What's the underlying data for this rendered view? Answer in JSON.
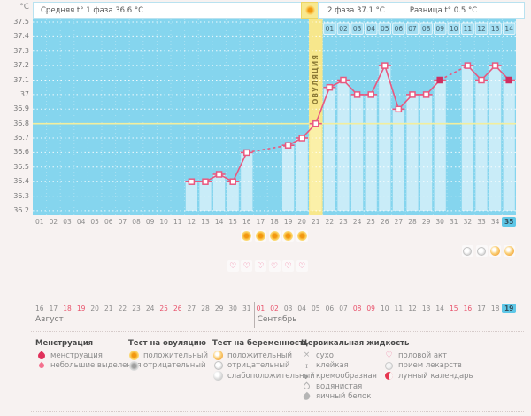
{
  "colors": {
    "chart_bg": "#85d5ee",
    "bar": "#c9ecf8",
    "band": "#f7e78c",
    "band_bar": "#fbf0a8",
    "line": "#e9587f",
    "marker_fill": "#ffffff",
    "marker_filled": "#cf2e61",
    "coverline": "#f3ee9d",
    "highlight_day": "#5ec7e7",
    "weekend_red": "#e8526b"
  },
  "header": {
    "unit_label": "°C",
    "phase1_label": "Средняя t° 1 фаза 36.6 °C",
    "phase2_label": "2 фаза 37.1 °C",
    "diff_label": "Разница t° 0.5 °C",
    "ovulation_label": "ОВУЛЯЦИЯ",
    "sun_icon": "sun-positive-icon"
  },
  "chart_data": {
    "type": "line",
    "title": "Basal body temperature cycle chart",
    "ylabel": "°C",
    "ylim": [
      36.2,
      37.5
    ],
    "ytick_step": 0.1,
    "yticks": [
      "37.5",
      "37.4",
      "37.3",
      "37.2",
      "37.1",
      "37",
      "36.9",
      "36.8",
      "36.7",
      "36.6",
      "36.5",
      "36.4",
      "36.3",
      "36.2"
    ],
    "x_days_total": 35,
    "day_axis_labels": [
      "01",
      "02",
      "03",
      "04",
      "05",
      "06",
      "07",
      "08",
      "09",
      "10",
      "11",
      "12",
      "13",
      "14",
      "15",
      "16",
      "17",
      "18",
      "19",
      "20",
      "21",
      "22",
      "23",
      "24",
      "25",
      "26",
      "27",
      "28",
      "29",
      "30",
      "31",
      "32",
      "33",
      "34",
      "35"
    ],
    "current_cycle_day": 35,
    "coverline_temp": 36.8,
    "ovulation_day": 21,
    "phase2_start_day": 22,
    "phase2_day_labels": [
      "01",
      "02",
      "03",
      "04",
      "05",
      "06",
      "07",
      "08",
      "09",
      "10",
      "11",
      "12",
      "13",
      "14"
    ],
    "points": [
      {
        "day": 12,
        "temp": 36.4
      },
      {
        "day": 13,
        "temp": 36.4
      },
      {
        "day": 14,
        "temp": 36.45
      },
      {
        "day": 15,
        "temp": 36.4
      },
      {
        "day": 16,
        "temp": 36.6
      },
      {
        "day": 19,
        "temp": 36.65
      },
      {
        "day": 20,
        "temp": 36.7
      },
      {
        "day": 21,
        "temp": 36.8
      },
      {
        "day": 22,
        "temp": 37.05
      },
      {
        "day": 23,
        "temp": 37.1
      },
      {
        "day": 24,
        "temp": 37.0
      },
      {
        "day": 25,
        "temp": 37.0
      },
      {
        "day": 26,
        "temp": 37.2
      },
      {
        "day": 27,
        "temp": 36.9
      },
      {
        "day": 28,
        "temp": 37.0
      },
      {
        "day": 29,
        "temp": 37.0
      },
      {
        "day": 30,
        "temp": 37.1
      },
      {
        "day": 32,
        "temp": 37.2
      },
      {
        "day": 33,
        "temp": 37.1
      },
      {
        "day": 34,
        "temp": 37.2
      },
      {
        "day": 35,
        "temp": 37.1
      }
    ],
    "filled_marker_days": [
      30,
      35
    ],
    "missing_days": [
      17,
      18,
      31
    ]
  },
  "marker_rows": {
    "ovulation_tests": [
      {
        "day": 16,
        "type": "positive"
      },
      {
        "day": 17,
        "type": "positive"
      },
      {
        "day": 18,
        "type": "positive"
      },
      {
        "day": 19,
        "type": "positive"
      },
      {
        "day": 20,
        "type": "positive"
      }
    ],
    "pregnancy_tests": [
      {
        "day": 32,
        "type": "negative"
      },
      {
        "day": 33,
        "type": "negative"
      },
      {
        "day": 34,
        "type": "positive"
      },
      {
        "day": 35,
        "type": "positive"
      }
    ],
    "intercourse_days": [
      15,
      16,
      17,
      18,
      19,
      20
    ]
  },
  "calendar": {
    "months": [
      {
        "name": "Август",
        "days": [
          "16",
          "17",
          "18",
          "19",
          "20",
          "21",
          "22",
          "23",
          "24",
          "25",
          "26",
          "27",
          "28",
          "29",
          "30",
          "31"
        ],
        "weekend_days": [
          "18",
          "19",
          "25",
          "26"
        ]
      },
      {
        "name": "Сентябрь",
        "days": [
          "01",
          "02",
          "03",
          "04",
          "05",
          "06",
          "07",
          "08",
          "09",
          "10",
          "11",
          "12",
          "13",
          "14",
          "15",
          "16",
          "17",
          "18",
          "19"
        ],
        "weekend_days": [
          "01",
          "02",
          "08",
          "09",
          "15",
          "16"
        ],
        "today": "19"
      }
    ]
  },
  "legend": {
    "columns": [
      {
        "title": "Менструация",
        "items": [
          {
            "icon": "menstruation-icon",
            "label": "менструация"
          },
          {
            "icon": "spotting-icon",
            "label": "небольшие выделения"
          }
        ]
      },
      {
        "title": "Тест на овуляцию",
        "items": [
          {
            "icon": "ovulation-test-positive-icon",
            "label": "положительный"
          },
          {
            "icon": "ovulation-test-negative-icon",
            "label": "отрицательный"
          }
        ]
      },
      {
        "title": "Тест на беременность",
        "items": [
          {
            "icon": "pregnancy-test-positive-icon",
            "label": "положительный"
          },
          {
            "icon": "pregnancy-test-negative-icon",
            "label": "отрицательный"
          },
          {
            "icon": "pregnancy-test-weak-icon",
            "label": "слабоположительный"
          }
        ]
      },
      {
        "title": "Цервикальная жидкость",
        "items": [
          {
            "icon": "dry-icon",
            "label": "сухо"
          },
          {
            "icon": "sticky-icon",
            "label": "клейкая"
          },
          {
            "icon": "creamy-icon",
            "label": "кремообразная"
          },
          {
            "icon": "watery-icon",
            "label": "водянистая"
          },
          {
            "icon": "eggwhite-icon",
            "label": "яичный белок"
          }
        ]
      },
      {
        "title": "",
        "items": [
          {
            "icon": "intercourse-icon",
            "label": "половой акт"
          },
          {
            "icon": "medication-icon",
            "label": "прием лекарств"
          },
          {
            "icon": "moon-calendar-icon",
            "label": "лунный календарь"
          }
        ]
      }
    ]
  }
}
